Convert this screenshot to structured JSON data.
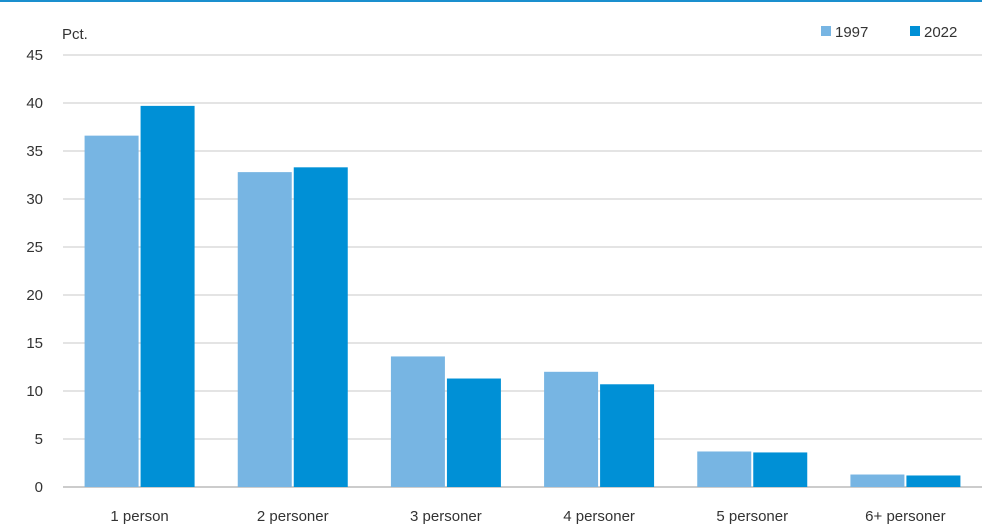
{
  "chart_data": {
    "type": "bar",
    "title": "",
    "xlabel": "",
    "ylabel": "Pct.",
    "ylim": [
      0,
      45
    ],
    "yticks": [
      0,
      5,
      10,
      15,
      20,
      25,
      30,
      35,
      40,
      45
    ],
    "grid": true,
    "legend_position": "top-right",
    "categories": [
      "1 person",
      "2 personer",
      "3 personer",
      "4 personer",
      "5 personer",
      "6+ personer"
    ],
    "series": [
      {
        "name": "1997",
        "color": "#77b5e3",
        "values": [
          36.6,
          32.8,
          13.6,
          12.0,
          3.7,
          1.3
        ]
      },
      {
        "name": "2022",
        "color": "#0090d6",
        "values": [
          39.7,
          33.3,
          11.3,
          10.7,
          3.6,
          1.2
        ]
      }
    ]
  }
}
